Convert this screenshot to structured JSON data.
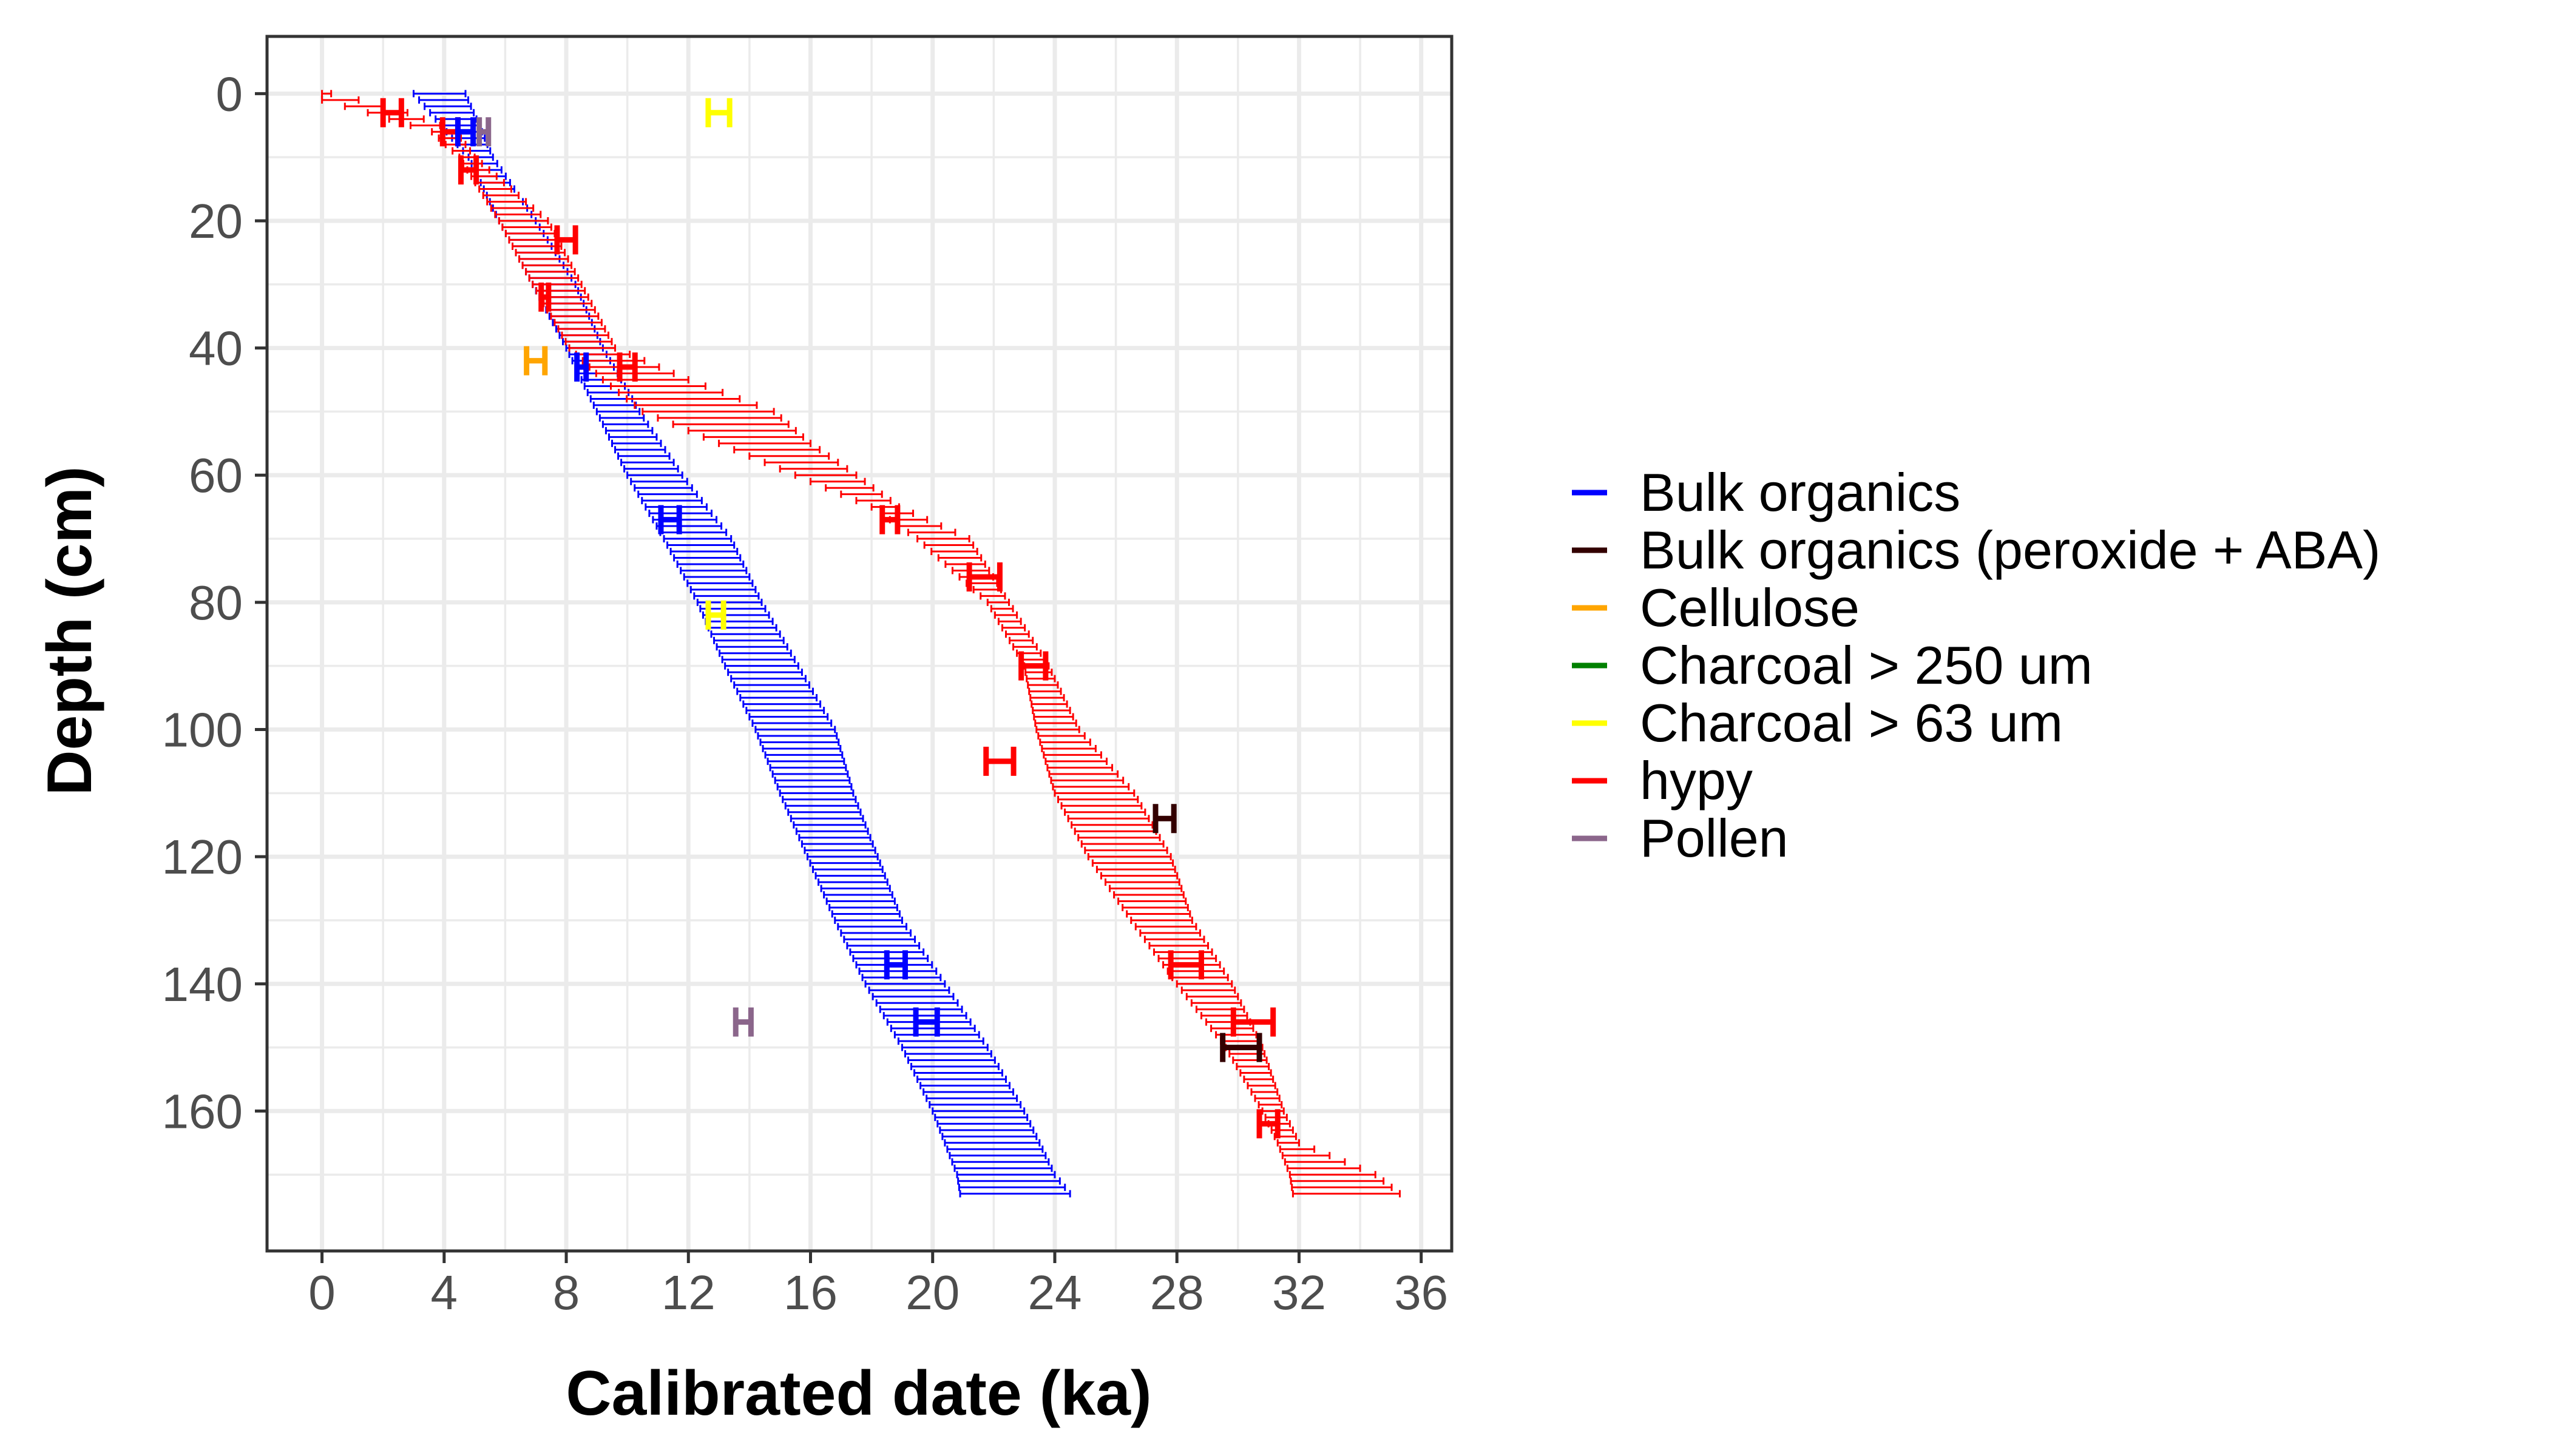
{
  "chart_data": {
    "type": "line",
    "xlabel": "Calibrated date (ka)",
    "ylabel": "Depth (cm)",
    "xlim": [
      -1.8,
      37.0
    ],
    "ylim": [
      -9,
      182
    ],
    "y_reversed": true,
    "x_ticks": [
      0,
      4,
      8,
      12,
      16,
      20,
      24,
      28,
      32,
      36
    ],
    "x_tick_labels": [
      "0",
      "4",
      "8",
      "12",
      "16",
      "20",
      "24",
      "28",
      "32",
      "36"
    ],
    "y_ticks": [
      0,
      20,
      40,
      60,
      80,
      100,
      120,
      140,
      160
    ],
    "y_tick_labels": [
      "0",
      "20",
      "40",
      "60",
      "80",
      "100",
      "120",
      "140",
      "160"
    ],
    "grid": true,
    "legend_position": "right",
    "legend": [
      {
        "label": "Bulk organics",
        "color": "#0000ff"
      },
      {
        "label": "Bulk organics (peroxide + ABA)",
        "color": "#330000"
      },
      {
        "label": "Cellulose",
        "color": "#ffa500"
      },
      {
        "label": "Charcoal > 250 um",
        "color": "#008000"
      },
      {
        "label": "Charcoal > 63 um",
        "color": "#ffff00"
      },
      {
        "label": "hypy",
        "color": "#ff0000"
      },
      {
        "label": "Pollen",
        "color": "#8b668b"
      }
    ],
    "age_models": [
      {
        "name": "Bulk organics",
        "color": "#0000ff",
        "depth_range": [
          0,
          173
        ],
        "depth_step": 1,
        "envelope": [
          {
            "depth": 0,
            "min": 3.0,
            "max": 4.7
          },
          {
            "depth": 10,
            "min": 4.8,
            "max": 5.6
          },
          {
            "depth": 20,
            "min": 5.8,
            "max": 7.0
          },
          {
            "depth": 30,
            "min": 6.9,
            "max": 8.3
          },
          {
            "depth": 40,
            "min": 8.0,
            "max": 9.2
          },
          {
            "depth": 50,
            "min": 9.0,
            "max": 10.4
          },
          {
            "depth": 60,
            "min": 10.0,
            "max": 11.8
          },
          {
            "depth": 70,
            "min": 11.2,
            "max": 13.4
          },
          {
            "depth": 80,
            "min": 12.3,
            "max": 14.4
          },
          {
            "depth": 90,
            "min": 13.2,
            "max": 15.6
          },
          {
            "depth": 100,
            "min": 14.2,
            "max": 16.8
          },
          {
            "depth": 110,
            "min": 15.0,
            "max": 17.4
          },
          {
            "depth": 120,
            "min": 15.9,
            "max": 18.2
          },
          {
            "depth": 130,
            "min": 16.8,
            "max": 19.0
          },
          {
            "depth": 140,
            "min": 17.8,
            "max": 20.4
          },
          {
            "depth": 150,
            "min": 19.0,
            "max": 21.8
          },
          {
            "depth": 160,
            "min": 20.0,
            "max": 23.0
          },
          {
            "depth": 170,
            "min": 20.8,
            "max": 24.0
          },
          {
            "depth": 173,
            "min": 20.9,
            "max": 24.5
          }
        ]
      },
      {
        "name": "hypy",
        "color": "#ff0000",
        "depth_range": [
          0,
          173
        ],
        "depth_step": 1,
        "envelope": [
          {
            "depth": 0,
            "min": 0.0,
            "max": 0.3
          },
          {
            "depth": 1,
            "min": 0.0,
            "max": 1.2
          },
          {
            "depth": 3,
            "min": 1.5,
            "max": 2.8
          },
          {
            "depth": 6,
            "min": 3.6,
            "max": 4.4
          },
          {
            "depth": 10,
            "min": 4.5,
            "max": 5.0
          },
          {
            "depth": 20,
            "min": 5.8,
            "max": 7.4
          },
          {
            "depth": 30,
            "min": 6.9,
            "max": 8.5
          },
          {
            "depth": 40,
            "min": 8.1,
            "max": 9.6
          },
          {
            "depth": 45,
            "min": 9.2,
            "max": 12.0
          },
          {
            "depth": 50,
            "min": 10.5,
            "max": 14.8
          },
          {
            "depth": 55,
            "min": 13.0,
            "max": 16.0
          },
          {
            "depth": 60,
            "min": 15.5,
            "max": 17.5
          },
          {
            "depth": 65,
            "min": 18.0,
            "max": 18.9
          },
          {
            "depth": 70,
            "min": 19.5,
            "max": 21.2
          },
          {
            "depth": 80,
            "min": 21.8,
            "max": 22.5
          },
          {
            "depth": 90,
            "min": 23.0,
            "max": 23.8
          },
          {
            "depth": 100,
            "min": 23.4,
            "max": 24.8
          },
          {
            "depth": 110,
            "min": 24.0,
            "max": 26.6
          },
          {
            "depth": 120,
            "min": 25.1,
            "max": 27.8
          },
          {
            "depth": 130,
            "min": 26.5,
            "max": 28.5
          },
          {
            "depth": 140,
            "min": 28.0,
            "max": 29.8
          },
          {
            "depth": 150,
            "min": 29.6,
            "max": 30.8
          },
          {
            "depth": 160,
            "min": 30.8,
            "max": 31.5
          },
          {
            "depth": 165,
            "min": 31.3,
            "max": 32.0
          },
          {
            "depth": 170,
            "min": 31.7,
            "max": 34.5
          },
          {
            "depth": 173,
            "min": 31.8,
            "max": 35.3
          }
        ]
      }
    ],
    "dates": [
      {
        "material": "hypy",
        "age": 2.3,
        "err": 0.3,
        "depth": 3
      },
      {
        "material": "hypy",
        "age": 4.2,
        "err": 0.25,
        "depth": 6
      },
      {
        "material": "Bulk organics",
        "age": 4.7,
        "err": 0.25,
        "depth": 6
      },
      {
        "material": "Pollen",
        "age": 5.3,
        "err": 0.15,
        "depth": 6
      },
      {
        "material": "hypy",
        "age": 4.8,
        "err": 0.25,
        "depth": 12
      },
      {
        "material": "Charcoal > 63 um",
        "age": 13.0,
        "err": 0.35,
        "depth": 3
      },
      {
        "material": "hypy",
        "age": 8.0,
        "err": 0.3,
        "depth": 23
      },
      {
        "material": "hypy",
        "age": 7.3,
        "err": 0.12,
        "depth": 32
      },
      {
        "material": "Cellulose",
        "age": 7.0,
        "err": 0.3,
        "depth": 42
      },
      {
        "material": "Bulk organics",
        "age": 8.5,
        "err": 0.15,
        "depth": 43
      },
      {
        "material": "hypy",
        "age": 10.0,
        "err": 0.25,
        "depth": 43
      },
      {
        "material": "Bulk organics",
        "age": 11.4,
        "err": 0.3,
        "depth": 67
      },
      {
        "material": "hypy",
        "age": 18.6,
        "err": 0.25,
        "depth": 67
      },
      {
        "material": "hypy",
        "age": 21.7,
        "err": 0.5,
        "depth": 76
      },
      {
        "material": "Charcoal > 63 um",
        "age": 12.9,
        "err": 0.25,
        "depth": 82
      },
      {
        "material": "hypy",
        "age": 23.3,
        "err": 0.4,
        "depth": 90
      },
      {
        "material": "hypy",
        "age": 22.2,
        "err": 0.45,
        "depth": 105
      },
      {
        "material": "Bulk organics (peroxide + ABA)",
        "age": 27.6,
        "err": 0.3,
        "depth": 114
      },
      {
        "material": "Bulk organics",
        "age": 18.8,
        "err": 0.3,
        "depth": 137
      },
      {
        "material": "hypy",
        "age": 28.3,
        "err": 0.5,
        "depth": 137
      },
      {
        "material": "Pollen",
        "age": 13.8,
        "err": 0.25,
        "depth": 146
      },
      {
        "material": "Bulk organics",
        "age": 19.8,
        "err": 0.35,
        "depth": 146
      },
      {
        "material": "hypy",
        "age": 30.5,
        "err": 0.65,
        "depth": 146
      },
      {
        "material": "Bulk organics (peroxide + ABA)",
        "age": 30.1,
        "err": 0.6,
        "depth": 150
      },
      {
        "material": "hypy",
        "age": 31.0,
        "err": 0.3,
        "depth": 162
      }
    ]
  }
}
